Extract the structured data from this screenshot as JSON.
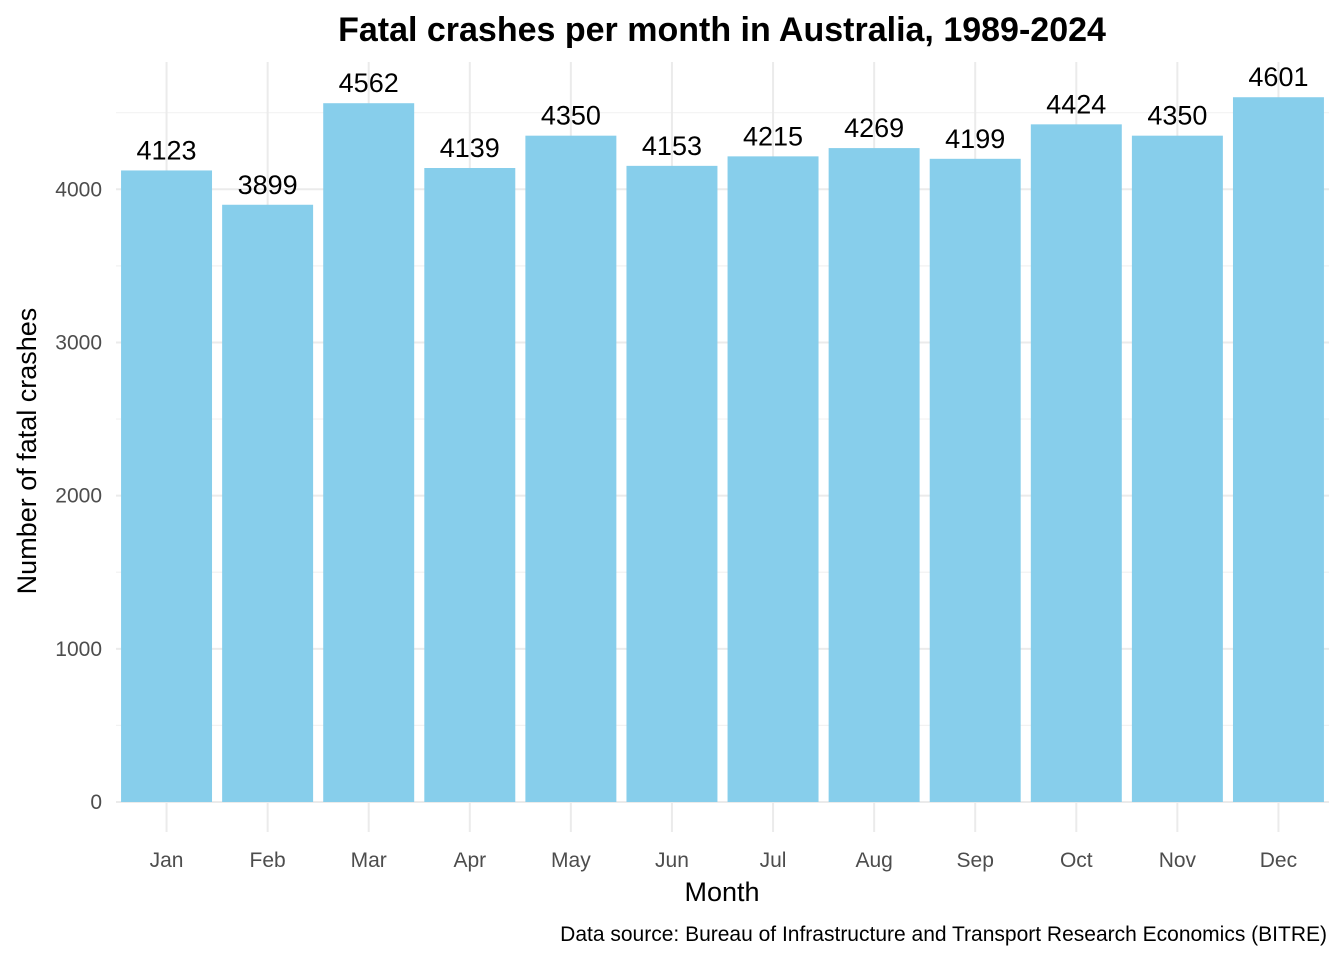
{
  "chart_data": {
    "type": "bar",
    "title": "Fatal crashes per month in Australia, 1989-2024",
    "xlabel": "Month",
    "ylabel": "Number of fatal crashes",
    "caption": "Data source: Bureau of Infrastructure and Transport Research Economics (BITRE)",
    "categories": [
      "Jan",
      "Feb",
      "Mar",
      "Apr",
      "May",
      "Jun",
      "Jul",
      "Aug",
      "Sep",
      "Oct",
      "Nov",
      "Dec"
    ],
    "values": [
      4123,
      3899,
      4562,
      4139,
      4350,
      4153,
      4215,
      4269,
      4199,
      4424,
      4350,
      4601
    ],
    "yticks": [
      0,
      1000,
      2000,
      3000,
      4000
    ],
    "ylim": [
      0,
      4831
    ],
    "grid": true,
    "bar_color": "#87CEEB"
  }
}
